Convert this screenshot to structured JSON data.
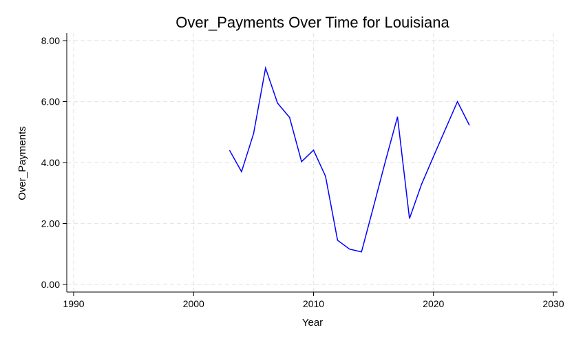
{
  "chart_data": {
    "type": "line",
    "title": "Over_Payments Over Time for Louisiana",
    "xlabel": "Year",
    "ylabel": "Over_Payments",
    "xlim": [
      1990,
      2030
    ],
    "ylim": [
      0,
      8
    ],
    "x_ticks": [
      1990,
      2000,
      2010,
      2020,
      2030
    ],
    "x_tick_labels": [
      "1990",
      "2000",
      "2010",
      "2020",
      "2030"
    ],
    "y_ticks": [
      0,
      2,
      4,
      6,
      8
    ],
    "y_tick_labels": [
      "0.00",
      "2.00",
      "4.00",
      "6.00",
      "8.00"
    ],
    "grid": true,
    "legend": "none",
    "series": [
      {
        "color": "#0000ff",
        "x": [
          2003,
          2004,
          2005,
          2006,
          2007,
          2008,
          2009,
          2010,
          2011,
          2012,
          2013,
          2014,
          2015,
          2016,
          2017,
          2018,
          2019,
          2020,
          2021,
          2022,
          2023
        ],
        "y": [
          4.4,
          3.7,
          4.95,
          7.1,
          5.95,
          5.48,
          4.03,
          4.41,
          3.55,
          1.45,
          1.16,
          1.07,
          2.55,
          4.05,
          5.5,
          2.16,
          3.28,
          4.2,
          5.1,
          6.0,
          5.22
        ]
      }
    ]
  }
}
